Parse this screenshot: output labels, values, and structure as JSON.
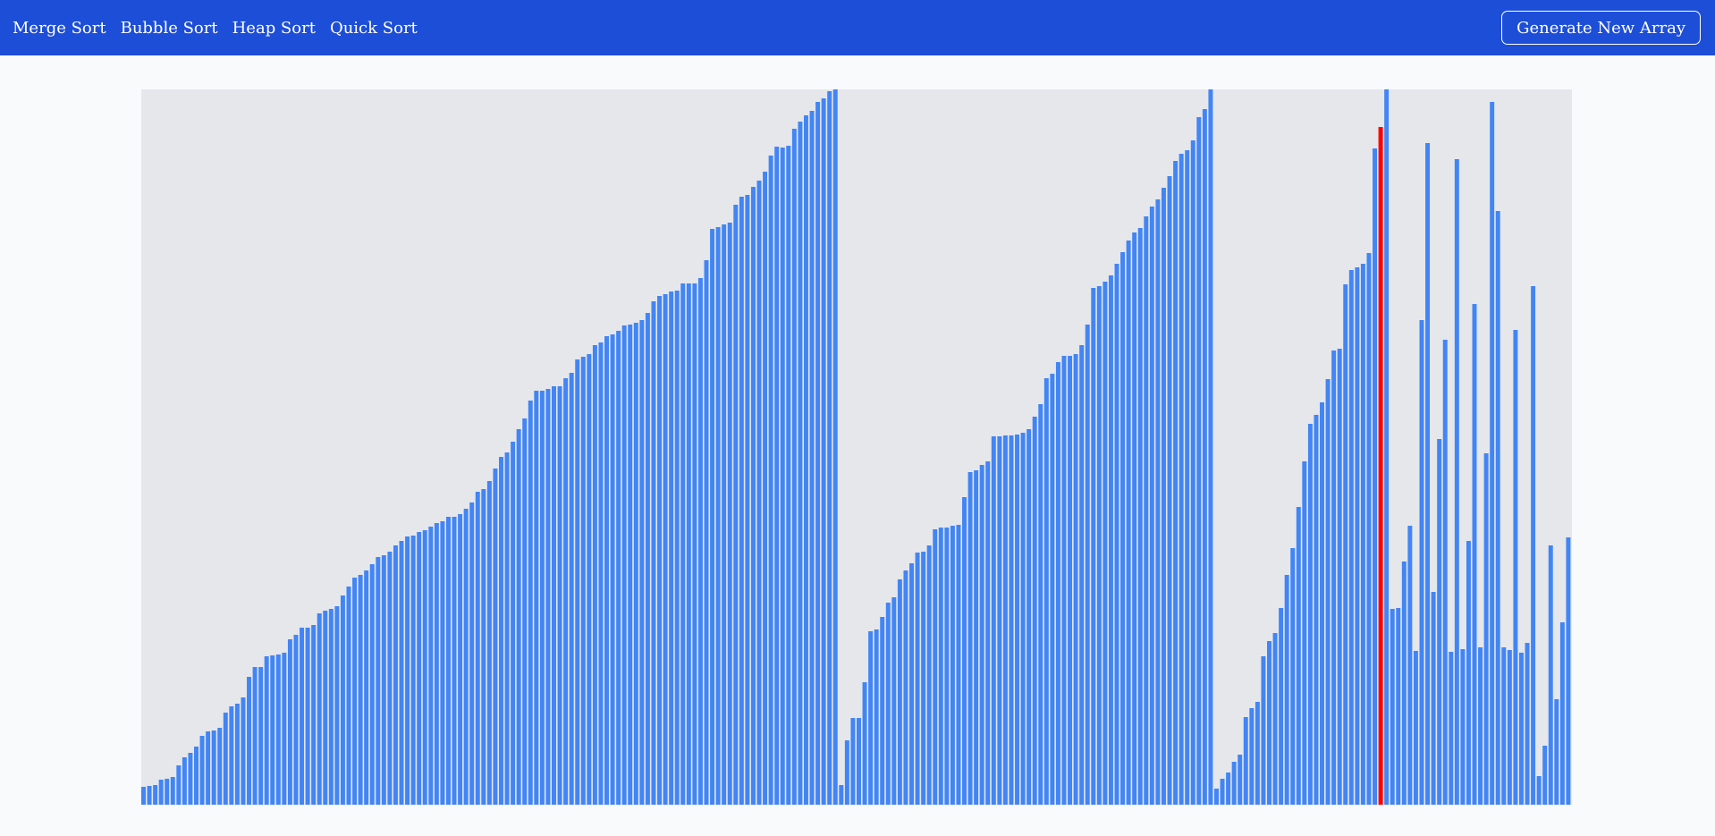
{
  "navbar": {
    "links": [
      {
        "label": "Merge Sort"
      },
      {
        "label": "Bubble Sort"
      },
      {
        "label": "Heap Sort"
      },
      {
        "label": "Quick Sort"
      }
    ],
    "generate_label": "Generate New Array"
  },
  "colors": {
    "navbar_bg": "#1d4ed8",
    "bar_default": "#4285f4",
    "bar_active": "#ff0000",
    "canvas_bg": "#e5e7eb"
  },
  "chart_data": {
    "type": "bar",
    "ylim": [
      0,
      800
    ],
    "highlight_indices": [
      211
    ],
    "values": [
      20,
      21,
      22,
      28,
      29,
      31,
      44,
      53,
      58,
      65,
      77,
      82,
      83,
      86,
      103,
      110,
      113,
      120,
      143,
      154,
      154,
      166,
      167,
      168,
      170,
      185,
      190,
      198,
      198,
      201,
      214,
      217,
      219,
      222,
      234,
      244,
      254,
      257,
      262,
      269,
      277,
      279,
      283,
      290,
      295,
      300,
      301,
      305,
      307,
      311,
      315,
      317,
      322,
      322,
      325,
      331,
      338,
      350,
      353,
      362,
      376,
      389,
      394,
      406,
      420,
      432,
      452,
      463,
      463,
      465,
      468,
      468,
      477,
      483,
      498,
      501,
      504,
      514,
      517,
      524,
      526,
      530,
      536,
      537,
      539,
      542,
      550,
      563,
      569,
      571,
      574,
      575,
      583,
      583,
      583,
      589,
      609,
      644,
      646,
      649,
      651,
      671,
      680,
      682,
      691,
      698,
      708,
      726,
      736,
      735,
      737,
      756,
      764,
      771,
      776,
      786,
      790,
      798,
      800,
      22,
      72,
      97,
      97,
      137,
      194,
      196,
      210,
      226,
      232,
      252,
      262,
      270,
      282,
      283,
      290,
      308,
      310,
      310,
      312,
      313,
      344,
      372,
      374,
      380,
      384,
      412,
      412,
      413,
      413,
      414,
      416,
      420,
      434,
      448,
      477,
      482,
      495,
      502,
      502,
      504,
      514,
      537,
      578,
      580,
      585,
      592,
      605,
      618,
      631,
      640,
      645,
      658,
      669,
      677,
      690,
      703,
      720,
      728,
      732,
      743,
      769,
      778,
      800,
      18,
      29,
      36,
      48,
      56,
      98,
      108,
      115,
      166,
      183,
      192,
      220,
      257,
      287,
      333,
      384,
      426,
      436,
      450,
      476,
      508,
      510,
      582,
      598,
      601,
      605,
      617,
      734,
      758,
      800,
      219,
      220,
      272,
      312,
      172,
      542,
      740,
      238,
      409,
      520,
      171,
      722,
      174,
      295,
      560,
      176,
      393,
      786,
      664,
      176,
      173,
      531,
      170,
      181,
      580,
      32,
      66,
      290,
      118,
      204,
      299
    ]
  }
}
